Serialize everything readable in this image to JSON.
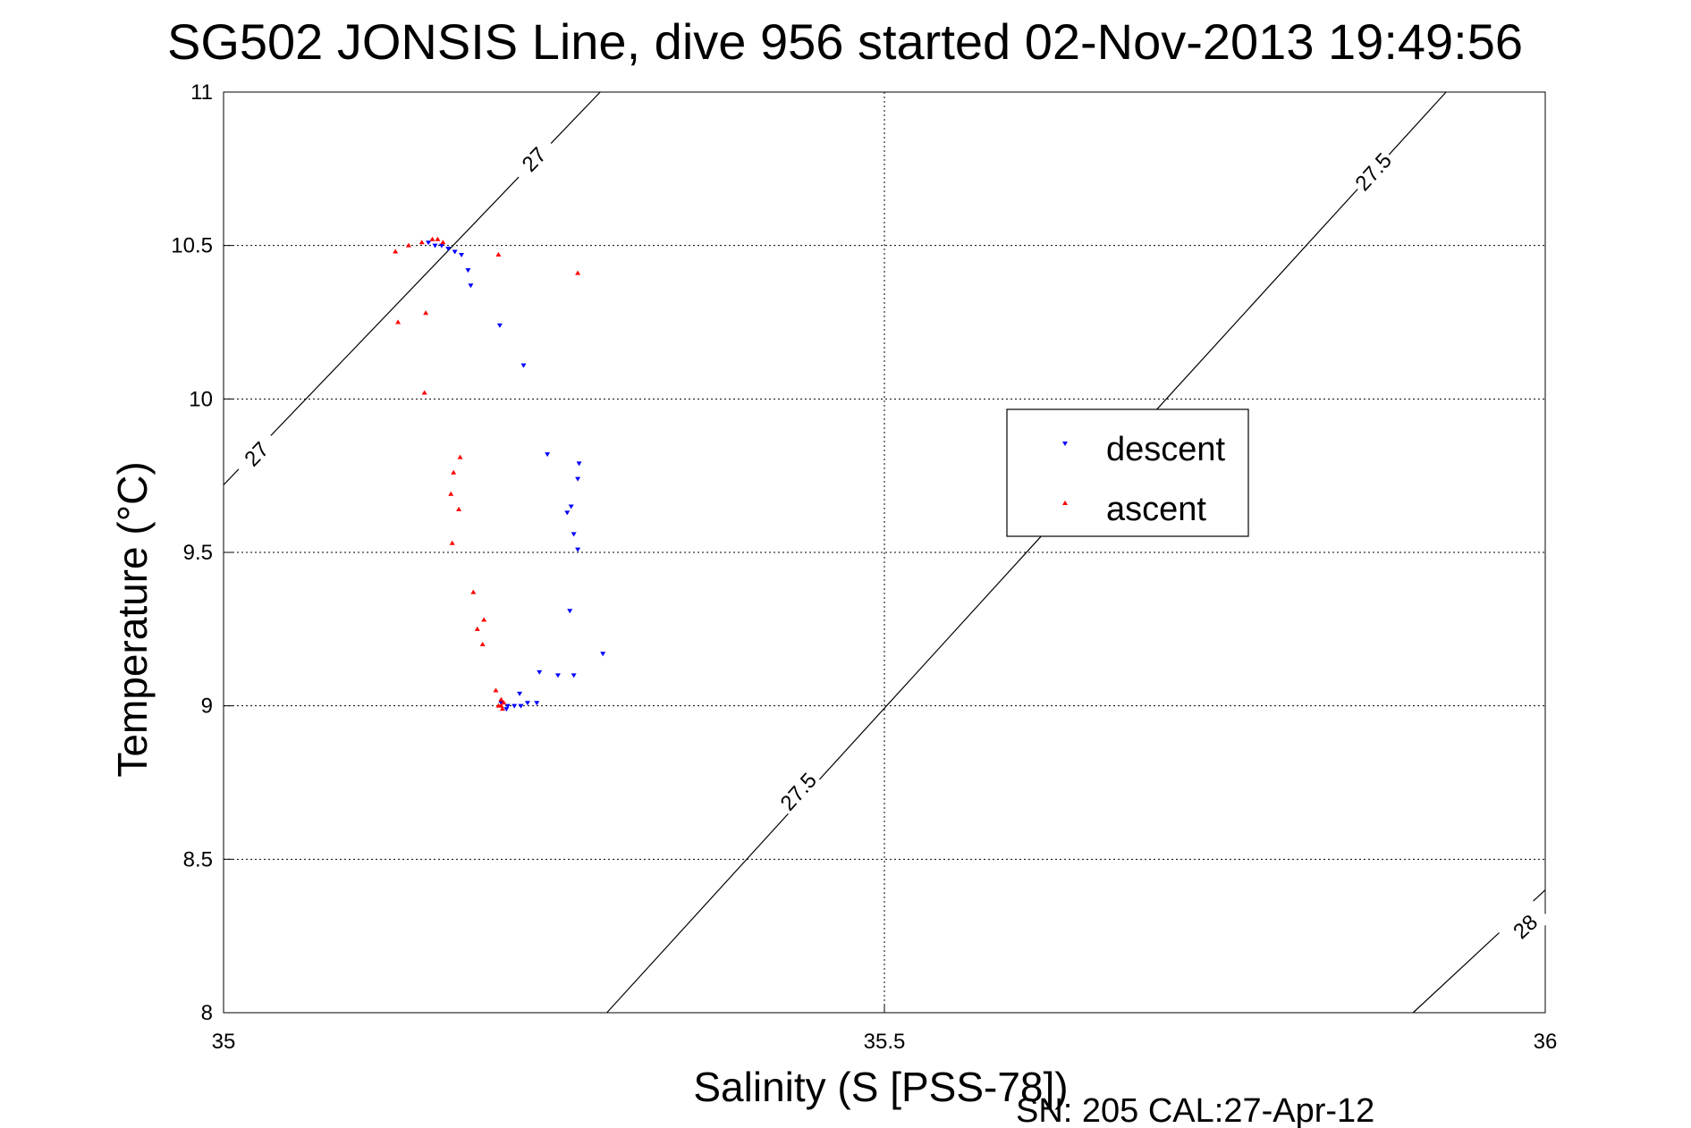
{
  "chart_data": {
    "type": "scatter",
    "title": "SG502 JONSIS Line, dive 956 started 02-Nov-2013 19:49:56",
    "xlabel": "Salinity (S [PSS-78])",
    "ylabel": "Temperature (°C)",
    "xlim": [
      35,
      36
    ],
    "ylim": [
      8,
      11
    ],
    "x_ticks": [
      "35",
      "35.5",
      "36"
    ],
    "y_ticks": [
      "8",
      "8.5",
      "9",
      "9.5",
      "10",
      "10.5",
      "11"
    ],
    "x_tick_values": [
      35,
      35.5,
      36
    ],
    "y_tick_values": [
      8,
      8.5,
      9,
      9.5,
      10,
      10.5,
      11
    ],
    "grid": true,
    "legend_position": "right",
    "footer": "SN: 205  CAL:27-Apr-12",
    "contours": [
      {
        "label": "27",
        "points": [
          [
            35.0,
            9.72
          ],
          [
            35.285,
            11.0
          ]
        ],
        "label_positions": [
          [
            35.235,
            10.78
          ],
          [
            35.025,
            9.82
          ]
        ]
      },
      {
        "label": "27.5",
        "points": [
          [
            35.29,
            8.0
          ],
          [
            35.925,
            11.0
          ]
        ],
        "label_positions": [
          [
            35.87,
            10.74
          ],
          [
            35.435,
            8.72
          ]
        ]
      },
      {
        "label": "28",
        "points": [
          [
            35.9,
            8.0
          ],
          [
            36.0,
            8.4
          ]
        ],
        "label_positions": [
          [
            35.985,
            8.28
          ]
        ]
      }
    ],
    "series": [
      {
        "name": "descent",
        "color": "#0000ff",
        "marker": "triangle-down",
        "points": [
          [
            35.155,
            10.51
          ],
          [
            35.16,
            10.5
          ],
          [
            35.165,
            10.5
          ],
          [
            35.17,
            10.49
          ],
          [
            35.175,
            10.48
          ],
          [
            35.18,
            10.47
          ],
          [
            35.185,
            10.42
          ],
          [
            35.187,
            10.37
          ],
          [
            35.209,
            10.24
          ],
          [
            35.227,
            10.11
          ],
          [
            35.245,
            9.82
          ],
          [
            35.269,
            9.79
          ],
          [
            35.268,
            9.74
          ],
          [
            35.263,
            9.65
          ],
          [
            35.26,
            9.63
          ],
          [
            35.265,
            9.56
          ],
          [
            35.268,
            9.51
          ],
          [
            35.262,
            9.31
          ],
          [
            35.287,
            9.17
          ],
          [
            35.239,
            9.11
          ],
          [
            35.253,
            9.1
          ],
          [
            35.265,
            9.1
          ],
          [
            35.237,
            9.01
          ],
          [
            35.23,
            9.01
          ],
          [
            35.225,
            9.0
          ],
          [
            35.22,
            9.0
          ],
          [
            35.215,
            9.0
          ],
          [
            35.21,
            9.01
          ],
          [
            35.224,
            9.04
          ],
          [
            35.214,
            8.99
          ]
        ]
      },
      {
        "name": "ascent",
        "color": "#ff0000",
        "marker": "triangle-up",
        "points": [
          [
            35.13,
            10.48
          ],
          [
            35.14,
            10.5
          ],
          [
            35.15,
            10.51
          ],
          [
            35.158,
            10.52
          ],
          [
            35.162,
            10.52
          ],
          [
            35.166,
            10.51
          ],
          [
            35.208,
            10.47
          ],
          [
            35.268,
            10.41
          ],
          [
            35.132,
            10.25
          ],
          [
            35.153,
            10.28
          ],
          [
            35.152,
            10.02
          ],
          [
            35.179,
            9.81
          ],
          [
            35.174,
            9.76
          ],
          [
            35.172,
            9.69
          ],
          [
            35.178,
            9.64
          ],
          [
            35.173,
            9.53
          ],
          [
            35.189,
            9.37
          ],
          [
            35.197,
            9.28
          ],
          [
            35.192,
            9.25
          ],
          [
            35.196,
            9.2
          ],
          [
            35.206,
            9.05
          ],
          [
            35.21,
            9.02
          ],
          [
            35.212,
            9.01
          ],
          [
            35.21,
            9.0
          ],
          [
            35.208,
            9.0
          ],
          [
            35.211,
            8.99
          ]
        ]
      }
    ]
  }
}
